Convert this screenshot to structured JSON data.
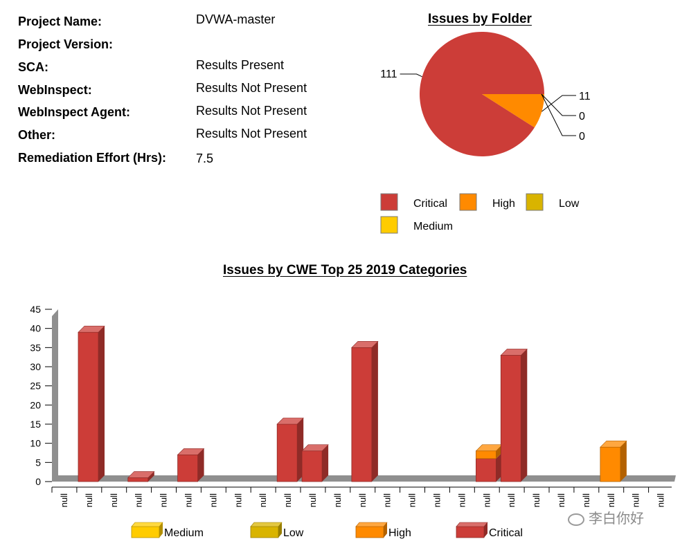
{
  "project_info": {
    "rows": [
      {
        "label": "Project Name:",
        "value": "DVWA-master"
      },
      {
        "label": "Project Version:",
        "value": ""
      },
      {
        "label": "SCA:",
        "value": "Results Present"
      },
      {
        "label": "WebInspect:",
        "value": "Results Not Present"
      },
      {
        "label": "WebInspect Agent:",
        "value": "Results Not Present"
      },
      {
        "label": "Other:",
        "value": "Results Not Present"
      },
      {
        "label": "Remediation Effort (Hrs):",
        "value": "7.5"
      }
    ]
  },
  "colors": {
    "critical": "#cc3d38",
    "high": "#ff8a00",
    "low": "#d9b400",
    "medium": "#ffcc00",
    "wall": "#8f8f8f"
  },
  "watermark": {
    "text": "李白你好",
    "icon": "wechat-icon"
  },
  "chart_data": [
    {
      "type": "pie",
      "title": "Issues by Folder",
      "slices": [
        {
          "name": "Critical",
          "value": 111,
          "label": "111",
          "color": "#cc3d38"
        },
        {
          "name": "High",
          "value": 11,
          "label": "11",
          "color": "#ff8a00"
        },
        {
          "name": "Low",
          "value": 0,
          "label": "0",
          "color": "#d9b400"
        },
        {
          "name": "Medium",
          "value": 0,
          "label": "0",
          "color": "#ffcc00"
        }
      ],
      "legend": {
        "placement": "bottom",
        "entries": [
          "Critical",
          "High",
          "Low",
          "Medium"
        ]
      }
    },
    {
      "type": "bar",
      "title": "Issues by CWE Top 25 2019 Categories",
      "stacked": true,
      "categories": [
        "null",
        "null",
        "null",
        "null",
        "null",
        "null",
        "null",
        "null",
        "null",
        "null",
        "null",
        "null",
        "null",
        "null",
        "null",
        "null",
        "null",
        "null",
        "null",
        "null",
        "null",
        "null",
        "null",
        "null",
        "null"
      ],
      "series": [
        {
          "name": "Critical",
          "color": "#cc3d38",
          "values": [
            39,
            0,
            1,
            0,
            7,
            0,
            0,
            0,
            15,
            8,
            0,
            35,
            0,
            0,
            0,
            0,
            6,
            33,
            0,
            0,
            0,
            0,
            0,
            0,
            0
          ]
        },
        {
          "name": "High",
          "color": "#ff8a00",
          "values": [
            0,
            0,
            0,
            0,
            0,
            0,
            0,
            0,
            0,
            0,
            0,
            0,
            0,
            0,
            0,
            0,
            2,
            0,
            0,
            0,
            0,
            9,
            0,
            0,
            0
          ]
        },
        {
          "name": "Low",
          "color": "#d9b400",
          "values": [
            0,
            0,
            0,
            0,
            0,
            0,
            0,
            0,
            0,
            0,
            0,
            0,
            0,
            0,
            0,
            0,
            0,
            0,
            0,
            0,
            0,
            0,
            0,
            0,
            0
          ]
        },
        {
          "name": "Medium",
          "color": "#ffcc00",
          "values": [
            0,
            0,
            0,
            0,
            0,
            0,
            0,
            0,
            0,
            0,
            0,
            0,
            0,
            0,
            0,
            0,
            0,
            0,
            0,
            0,
            0,
            0,
            0,
            0,
            0
          ]
        }
      ],
      "yticks": [
        "0",
        "5",
        "10",
        "15",
        "20",
        "25",
        "30",
        "35",
        "40",
        "45"
      ],
      "ylim": [
        0,
        45
      ],
      "legend": {
        "placement": "bottom",
        "entries": [
          "Medium",
          "Low",
          "High",
          "Critical"
        ]
      }
    }
  ]
}
